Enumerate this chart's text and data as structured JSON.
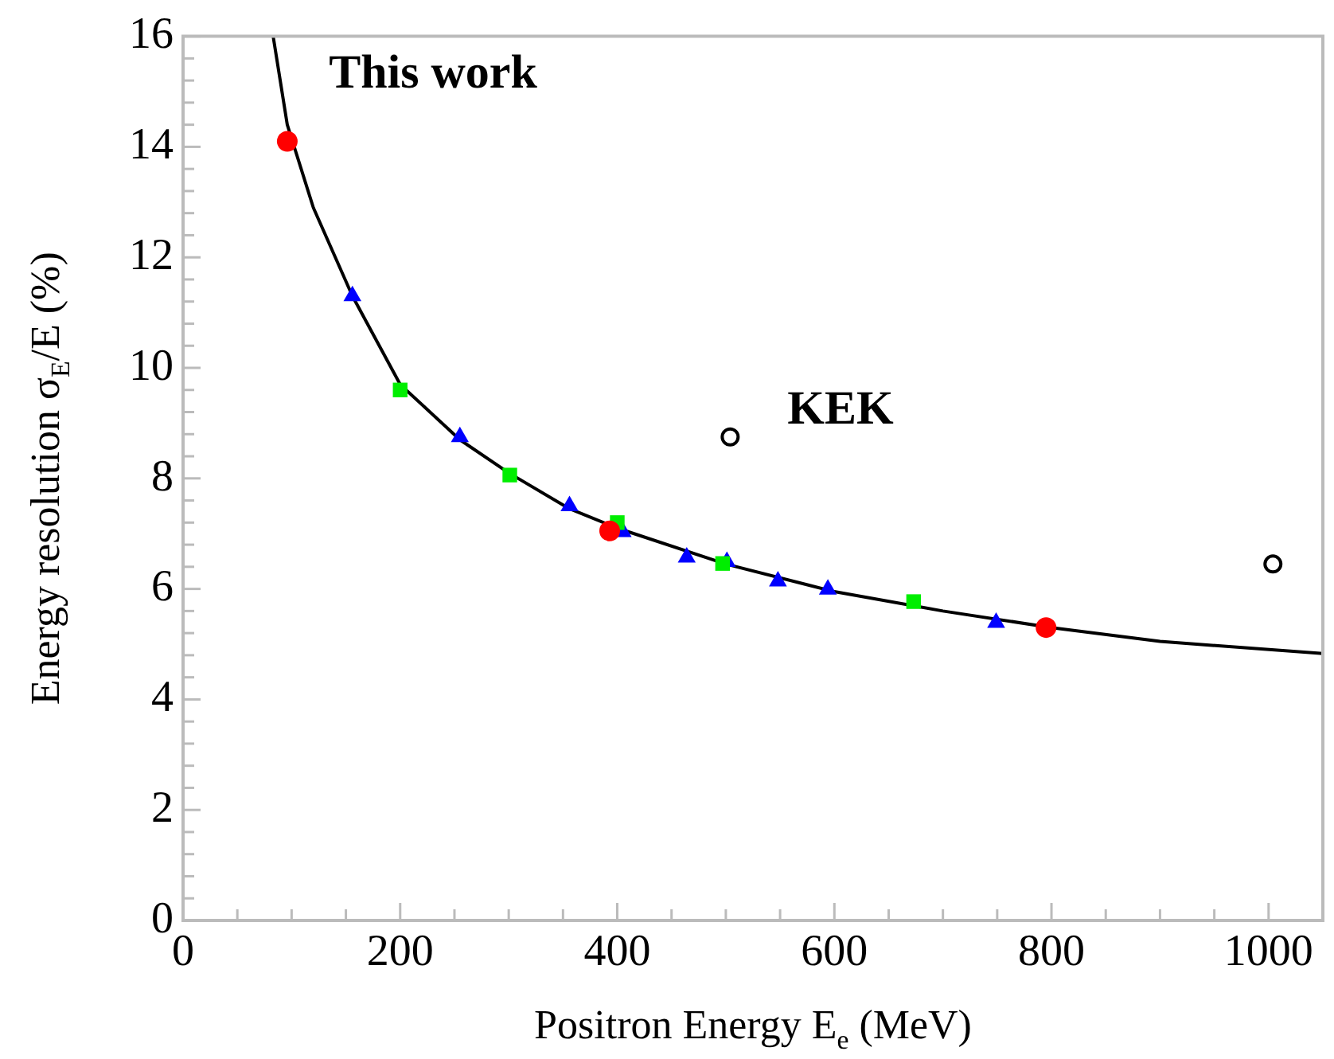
{
  "chart_data": {
    "type": "scatter",
    "xlabel": "Positron Energy E$_{e}$ (MeV)",
    "ylabel": "Energy resolution σ$_{E}$/E (%)",
    "xlim": [
      0,
      1050
    ],
    "ylim": [
      0,
      16
    ],
    "xticks": [
      0,
      {
        "value": 50,
        "label": null
      },
      {
        "value": 100,
        "label": null
      },
      {
        "value": 150,
        "label": null
      },
      200,
      {
        "value": 250,
        "label": null
      },
      {
        "value": 300,
        "label": null
      },
      {
        "value": 350,
        "label": null
      },
      400,
      {
        "value": 450,
        "label": null
      },
      {
        "value": 500,
        "label": null
      },
      {
        "value": 550,
        "label": null
      },
      600,
      {
        "value": 650,
        "label": null
      },
      {
        "value": 700,
        "label": null
      },
      {
        "value": 750,
        "label": null
      },
      800,
      {
        "value": 850,
        "label": null
      },
      {
        "value": 900,
        "label": null
      },
      {
        "value": 950,
        "label": null
      },
      1000,
      {
        "value": 1050,
        "label": null
      }
    ],
    "yticks": [
      0,
      {
        "value": 0.4,
        "label": null
      },
      {
        "value": 0.8,
        "label": null
      },
      {
        "value": 1.2,
        "label": null
      },
      {
        "value": 1.6,
        "label": null
      },
      2,
      {
        "value": 2.4,
        "label": null
      },
      {
        "value": 2.8,
        "label": null
      },
      {
        "value": 3.2,
        "label": null
      },
      {
        "value": 3.6,
        "label": null
      },
      4,
      {
        "value": 4.4,
        "label": null
      },
      {
        "value": 4.8,
        "label": null
      },
      {
        "value": 5.2,
        "label": null
      },
      {
        "value": 5.6,
        "label": null
      },
      6,
      {
        "value": 6.4,
        "label": null
      },
      {
        "value": 6.8,
        "label": null
      },
      {
        "value": 7.2,
        "label": null
      },
      {
        "value": 7.6,
        "label": null
      },
      8,
      {
        "value": 8.4,
        "label": null
      },
      {
        "value": 8.8,
        "label": null
      },
      {
        "value": 9.2,
        "label": null
      },
      {
        "value": 9.6,
        "label": null
      },
      10,
      {
        "value": 10.4,
        "label": null
      },
      {
        "value": 10.8,
        "label": null
      },
      {
        "value": 11.2,
        "label": null
      },
      {
        "value": 11.6,
        "label": null
      },
      12,
      {
        "value": 12.4,
        "label": null
      },
      {
        "value": 12.8,
        "label": null
      },
      {
        "value": 13.2,
        "label": null
      },
      {
        "value": 13.6,
        "label": null
      },
      14,
      {
        "value": 14.4,
        "label": null
      },
      {
        "value": 14.8,
        "label": null
      },
      {
        "value": 15.2,
        "label": null
      },
      {
        "value": 15.6,
        "label": null
      },
      16
    ],
    "grid": false,
    "annotations": [
      "This work",
      "KEK"
    ],
    "series": [
      {
        "type": "line",
        "color": "#000000",
        "marker": "none",
        "x": [
          83,
          96,
          120,
          156,
          200,
          255,
          300,
          356,
          400,
          500,
          600,
          700,
          800,
          900,
          1050
        ],
        "values": [
          16,
          14.4,
          12.9,
          11.3,
          9.7,
          8.7,
          8.1,
          7.45,
          7.1,
          6.45,
          5.95,
          5.6,
          5.3,
          5.05,
          4.83
        ]
      },
      {
        "color": "#ff0000",
        "marker": "circle",
        "x": [
          96,
          393,
          795
        ],
        "values": [
          14.1,
          7.05,
          5.3
        ]
      },
      {
        "color": "#00ee00",
        "marker": "square",
        "x": [
          200,
          301,
          400,
          497,
          673
        ],
        "values": [
          9.6,
          8.06,
          7.2,
          6.46,
          5.77
        ]
      },
      {
        "color": "#0000ff",
        "marker": "triangle",
        "x": [
          156,
          255,
          356,
          405,
          464,
          501,
          548,
          594,
          749
        ],
        "values": [
          11.3,
          8.75,
          7.5,
          7.03,
          6.57,
          6.49,
          6.14,
          5.99,
          5.39
        ]
      },
      {
        "color": "#000000",
        "marker": "circle",
        "x": [
          504,
          1004
        ],
        "values": [
          8.75,
          6.45
        ]
      }
    ]
  }
}
